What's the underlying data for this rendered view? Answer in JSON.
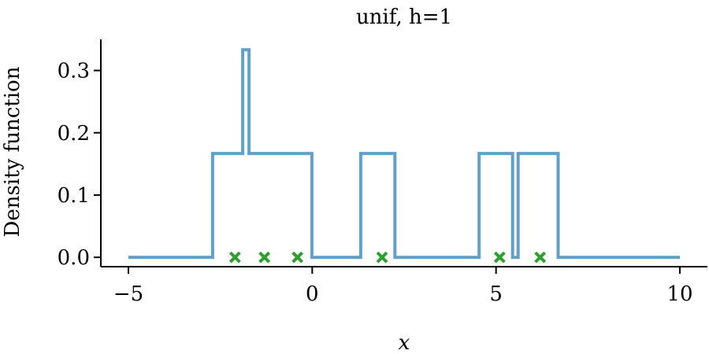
{
  "chart_data": {
    "type": "line",
    "title": "unif, h=1",
    "xlabel": "x",
    "ylabel": "Density function",
    "xlim": [
      -5.75,
      10.75
    ],
    "ylim": [
      -0.015,
      0.35
    ],
    "xticks": [
      -5,
      0,
      5,
      10
    ],
    "xtick_labels": [
      "−5",
      "0",
      "5",
      "10"
    ],
    "yticks": [
      0.0,
      0.1,
      0.2,
      0.3
    ],
    "ytick_labels": [
      "0.0",
      "0.1",
      "0.2",
      "0.3"
    ],
    "grid": false,
    "series": [
      {
        "kind": "step-line",
        "color": "#62a0ca",
        "x": [
          -5.0,
          -2.71,
          -2.71,
          -1.89,
          -1.89,
          -1.72,
          -1.72,
          -0.01,
          -0.01,
          1.32,
          1.32,
          2.25,
          2.25,
          4.54,
          4.54,
          5.45,
          5.45,
          5.6,
          5.6,
          6.69,
          6.69,
          10.0
        ],
        "y": [
          0.0,
          0.0,
          0.1667,
          0.1667,
          0.3333,
          0.3333,
          0.1667,
          0.1667,
          0.0,
          0.0,
          0.1667,
          0.1667,
          0.0,
          0.0,
          0.1667,
          0.1667,
          0.0,
          0.0,
          0.1667,
          0.1667,
          0.0,
          0.0
        ]
      },
      {
        "kind": "markers",
        "marker": "x",
        "color": "#2ca02c",
        "x": [
          -2.1,
          -1.3,
          -0.4,
          1.9,
          5.1,
          6.2
        ],
        "y": [
          0.0,
          0.0,
          0.0,
          0.0,
          0.0,
          0.0
        ]
      }
    ]
  }
}
